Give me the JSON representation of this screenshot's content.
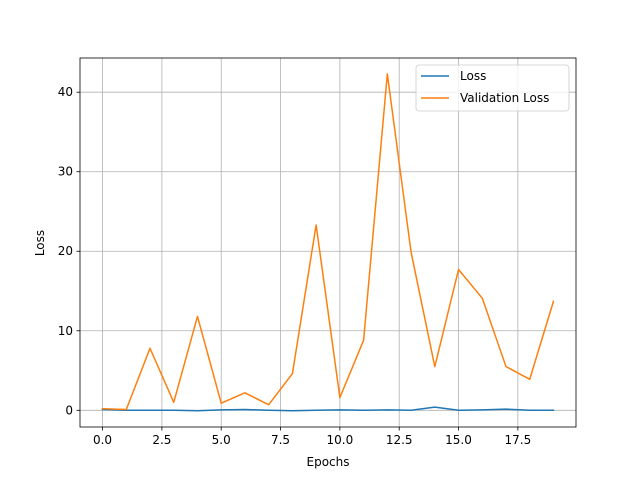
{
  "chart_data": {
    "type": "line",
    "title": "",
    "xlabel": "Epochs",
    "ylabel": "Loss",
    "xlim": [
      -0.95,
      19.95
    ],
    "ylim": [
      -2.1,
      44.3
    ],
    "grid": true,
    "legend_position": "top-right",
    "x": [
      0,
      1,
      2,
      3,
      4,
      5,
      6,
      7,
      8,
      9,
      10,
      11,
      12,
      13,
      14,
      15,
      16,
      17,
      18,
      19
    ],
    "xticks": [
      {
        "value": 0,
        "label": "0.0"
      },
      {
        "value": 2.5,
        "label": "2.5"
      },
      {
        "value": 5,
        "label": "5.0"
      },
      {
        "value": 7.5,
        "label": "7.5"
      },
      {
        "value": 10,
        "label": "10.0"
      },
      {
        "value": 12.5,
        "label": "12.5"
      },
      {
        "value": 15,
        "label": "15.0"
      },
      {
        "value": 17.5,
        "label": "17.5"
      }
    ],
    "yticks": [
      {
        "value": 0,
        "label": "0"
      },
      {
        "value": 10,
        "label": "10"
      },
      {
        "value": 20,
        "label": "20"
      },
      {
        "value": 30,
        "label": "30"
      },
      {
        "value": 40,
        "label": "40"
      }
    ],
    "series": [
      {
        "name": "Loss",
        "color": "#1f77b4",
        "values": [
          0.1,
          0.0,
          0.0,
          0.0,
          -0.05,
          0.05,
          0.1,
          0.0,
          -0.05,
          0.0,
          0.05,
          0.0,
          0.05,
          0.0,
          0.4,
          0.0,
          0.05,
          0.15,
          0.0,
          0.0
        ]
      },
      {
        "name": "Validation Loss",
        "color": "#ff7f0e",
        "values": [
          0.2,
          0.1,
          7.8,
          1.0,
          11.8,
          0.9,
          2.2,
          0.7,
          4.6,
          23.3,
          1.6,
          8.8,
          42.3,
          19.9,
          5.5,
          17.7,
          14.1,
          5.5,
          3.9,
          13.7
        ]
      }
    ]
  }
}
